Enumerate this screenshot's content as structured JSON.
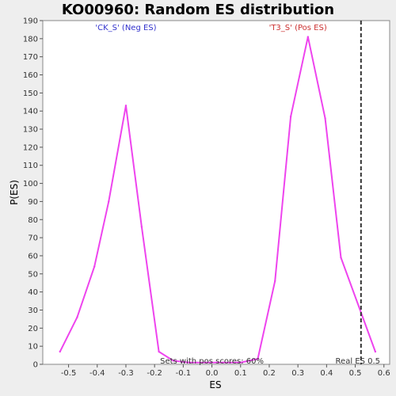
{
  "chart_data": {
    "type": "line",
    "title": "KO00960: Random ES distribution",
    "xlabel": "ES",
    "ylabel": "P(ES)",
    "xlim": [
      -0.59,
      0.62
    ],
    "ylim": [
      0,
      190
    ],
    "x_ticks": [
      -0.5,
      -0.4,
      -0.3,
      -0.2,
      -0.1,
      0.0,
      0.1,
      0.2,
      0.3,
      0.4,
      0.5,
      0.6
    ],
    "x_tick_labels": [
      "-0.5",
      "-0.4",
      "-0.3",
      "-0.2",
      "-0.1",
      "0.0",
      "0.1",
      "0.2",
      "0.3",
      "0.4",
      "0.5",
      "0.6"
    ],
    "y_ticks": [
      0,
      10,
      20,
      30,
      40,
      50,
      60,
      70,
      80,
      90,
      100,
      110,
      120,
      130,
      140,
      150,
      160,
      170,
      180,
      190
    ],
    "y_tick_labels": [
      "0",
      "10",
      "20",
      "30",
      "40",
      "50",
      "60",
      "70",
      "80",
      "90",
      "100",
      "110",
      "120",
      "130",
      "140",
      "150",
      "160",
      "170",
      "180",
      "190"
    ],
    "series": [
      {
        "color": "#ee44ee",
        "x": [
          -0.53,
          -0.47,
          -0.41,
          -0.36,
          -0.3,
          -0.245,
          -0.185,
          -0.135,
          -0.08,
          -0.02,
          0.04,
          0.1,
          0.16,
          0.22,
          0.275,
          0.335,
          0.395,
          0.45,
          0.57
        ],
        "values": [
          7,
          26,
          54,
          90,
          143,
          76,
          7,
          2,
          1,
          1,
          1,
          1,
          3,
          46,
          137,
          181,
          136,
          59,
          7
        ]
      }
    ],
    "real_es": {
      "x": 0.52,
      "label": "Real ES 0.5",
      "color": "#333333"
    },
    "annotations": {
      "neg": {
        "text": "'CK_S' (Neg ES)",
        "color": "#3333cc"
      },
      "pos": {
        "text": "'T3_S' (Pos ES)",
        "color": "#cc3333"
      },
      "pos_scores": {
        "text": "Sets with pos scores: 60%",
        "color": "#333333"
      }
    },
    "grid": false,
    "legend": "none"
  }
}
